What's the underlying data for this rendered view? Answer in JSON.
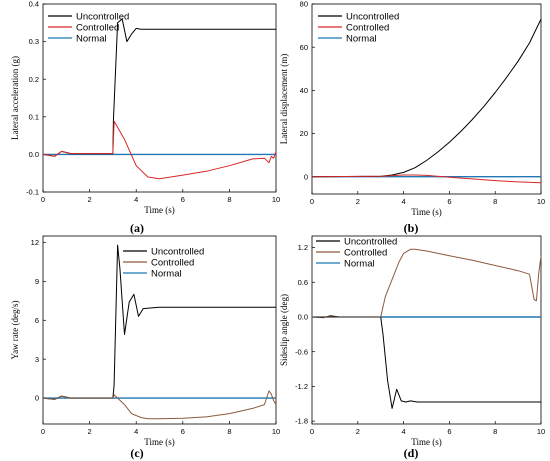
{
  "chart_data": [
    {
      "type": "line",
      "caption": "(a)",
      "xlabel": "Time (s)",
      "ylabel": "Lateral acceleration (g)",
      "xlim": [
        0,
        10
      ],
      "ylim": [
        -0.1,
        0.4
      ],
      "xticks": [
        0,
        2,
        4,
        6,
        8,
        10
      ],
      "yticks": [
        -0.1,
        0.0,
        0.1,
        0.2,
        0.3,
        0.4
      ],
      "ytick_labels": [
        "-0.1",
        "0.0",
        "0.1",
        "0.2",
        "0.3",
        "0.4"
      ],
      "legend_position": "top-left",
      "grid": false,
      "series": [
        {
          "name": "Uncontrolled",
          "color": "#000000",
          "x": [
            0,
            0.5,
            0.8,
            1.2,
            3.0,
            3.02,
            3.2,
            3.4,
            3.6,
            3.8,
            4.0,
            4.2,
            5.0,
            10
          ],
          "y": [
            0,
            -0.005,
            0.008,
            0.002,
            0.002,
            0.09,
            0.35,
            0.36,
            0.3,
            0.32,
            0.335,
            0.333,
            0.333,
            0.333
          ]
        },
        {
          "name": "Controlled",
          "color": "#d62728",
          "x": [
            0,
            0.5,
            0.8,
            1.2,
            3.0,
            3.05,
            3.5,
            4.0,
            4.5,
            5.0,
            6.0,
            7.0,
            8.0,
            9.0,
            9.5,
            9.7,
            9.8,
            9.9,
            10
          ],
          "y": [
            0,
            -0.005,
            0.008,
            0.002,
            0.002,
            0.088,
            0.04,
            -0.03,
            -0.06,
            -0.065,
            -0.055,
            -0.045,
            -0.03,
            -0.012,
            -0.01,
            -0.022,
            -0.005,
            -0.01,
            0.008
          ]
        },
        {
          "name": "Normal",
          "color": "#1f77b4",
          "x": [
            0,
            10
          ],
          "y": [
            0,
            0
          ]
        }
      ]
    },
    {
      "type": "line",
      "caption": "(b)",
      "xlabel": "Time (s)",
      "ylabel": "Lateral displacement (m)",
      "xlim": [
        0,
        10
      ],
      "ylim": [
        -8,
        80
      ],
      "xticks": [
        0,
        2,
        4,
        6,
        8,
        10
      ],
      "yticks": [
        0,
        20,
        40,
        60,
        80
      ],
      "ytick_labels": [
        "0",
        "20",
        "40",
        "60",
        "80"
      ],
      "legend_position": "top-left",
      "grid": false,
      "series": [
        {
          "name": "Uncontrolled",
          "color": "#000000",
          "x": [
            0,
            3,
            3.5,
            4,
            4.5,
            5,
            5.5,
            6,
            6.5,
            7,
            7.5,
            8,
            8.5,
            9,
            9.5,
            10
          ],
          "y": [
            0,
            0.2,
            0.8,
            2,
            4.2,
            7.5,
            11.5,
            16,
            21,
            26.5,
            32.5,
            39,
            46,
            53.5,
            62,
            73
          ]
        },
        {
          "name": "Controlled",
          "color": "#d62728",
          "x": [
            0,
            3,
            4,
            4.5,
            5,
            6,
            7,
            8,
            9,
            10
          ],
          "y": [
            0,
            0.2,
            0.8,
            0.8,
            0.6,
            -0.2,
            -1.0,
            -1.8,
            -2.4,
            -2.8
          ]
        },
        {
          "name": "Normal",
          "color": "#1f77b4",
          "x": [
            0,
            10
          ],
          "y": [
            0,
            0
          ]
        }
      ]
    },
    {
      "type": "line",
      "caption": "(c)",
      "xlabel": "Time (s)",
      "ylabel": "Yaw rate (deg/s)",
      "xlim": [
        0,
        10
      ],
      "ylim": [
        -2,
        12.5
      ],
      "xticks": [
        0,
        2,
        4,
        6,
        8,
        10
      ],
      "yticks": [
        0,
        3,
        6,
        9,
        12
      ],
      "ytick_labels": [
        "0",
        "3",
        "6",
        "9",
        "12"
      ],
      "legend_position": "top-right",
      "grid": false,
      "series": [
        {
          "name": "Uncontrolled",
          "color": "#000000",
          "x": [
            0,
            0.5,
            0.8,
            1.2,
            3.0,
            3.05,
            3.2,
            3.3,
            3.5,
            3.7,
            3.9,
            4.1,
            4.3,
            4.6,
            5.0,
            10
          ],
          "y": [
            0,
            -0.1,
            0.15,
            0.0,
            0.0,
            1.0,
            11.8,
            10.0,
            4.9,
            7.4,
            8.0,
            6.3,
            6.9,
            6.95,
            7.0,
            7.0
          ]
        },
        {
          "name": "Controlled",
          "color": "#8c5a3c",
          "x": [
            0,
            0.5,
            0.8,
            1.2,
            3.0,
            3.05,
            3.2,
            3.5,
            3.8,
            4.2,
            4.5,
            5.0,
            6.0,
            7.0,
            8.0,
            9.0,
            9.5,
            9.7,
            9.8,
            9.9,
            10
          ],
          "y": [
            0,
            -0.1,
            0.15,
            0.0,
            0.0,
            0.25,
            0.0,
            -0.5,
            -1.2,
            -1.5,
            -1.6,
            -1.6,
            -1.55,
            -1.45,
            -1.2,
            -0.8,
            -0.5,
            0.55,
            0.3,
            -0.2,
            -0.5
          ]
        },
        {
          "name": "Normal",
          "color": "#1f77b4",
          "x": [
            0,
            10
          ],
          "y": [
            0,
            0
          ]
        }
      ]
    },
    {
      "type": "line",
      "caption": "(d)",
      "xlabel": "Time (s)",
      "ylabel": "Sideslip angle (deg)",
      "xlim": [
        0,
        10
      ],
      "ylim": [
        -1.85,
        1.4
      ],
      "xticks": [
        0,
        2,
        4,
        6,
        8,
        10
      ],
      "yticks": [
        -1.8,
        -1.2,
        -0.6,
        0.0,
        0.6,
        1.2
      ],
      "ytick_labels": [
        "-1.8",
        "-1.2",
        "-0.6",
        "0.0",
        "0.6",
        "1.2"
      ],
      "legend_position": "top-left",
      "grid": false,
      "series": [
        {
          "name": "Uncontrolled",
          "color": "#000000",
          "x": [
            0,
            0.5,
            0.8,
            1.2,
            3.0,
            3.1,
            3.3,
            3.5,
            3.7,
            3.9,
            4.1,
            4.3,
            4.6,
            5.0,
            10
          ],
          "y": [
            0,
            -0.01,
            0.02,
            0.0,
            0.0,
            -0.3,
            -1.1,
            -1.58,
            -1.25,
            -1.45,
            -1.47,
            -1.45,
            -1.47,
            -1.47,
            -1.47
          ]
        },
        {
          "name": "Controlled",
          "color": "#8c5a3c",
          "x": [
            0,
            3.0,
            3.2,
            3.5,
            3.8,
            4.0,
            4.3,
            4.5,
            5.0,
            6.0,
            7.0,
            8.0,
            9.0,
            9.5,
            9.7,
            9.8,
            9.9,
            10
          ],
          "y": [
            0,
            0.0,
            0.35,
            0.65,
            0.95,
            1.1,
            1.17,
            1.17,
            1.14,
            1.06,
            0.98,
            0.89,
            0.8,
            0.74,
            0.3,
            0.28,
            0.75,
            1.05
          ]
        },
        {
          "name": "Normal",
          "color": "#1f77b4",
          "x": [
            0,
            10
          ],
          "y": [
            0,
            0
          ]
        }
      ]
    }
  ]
}
